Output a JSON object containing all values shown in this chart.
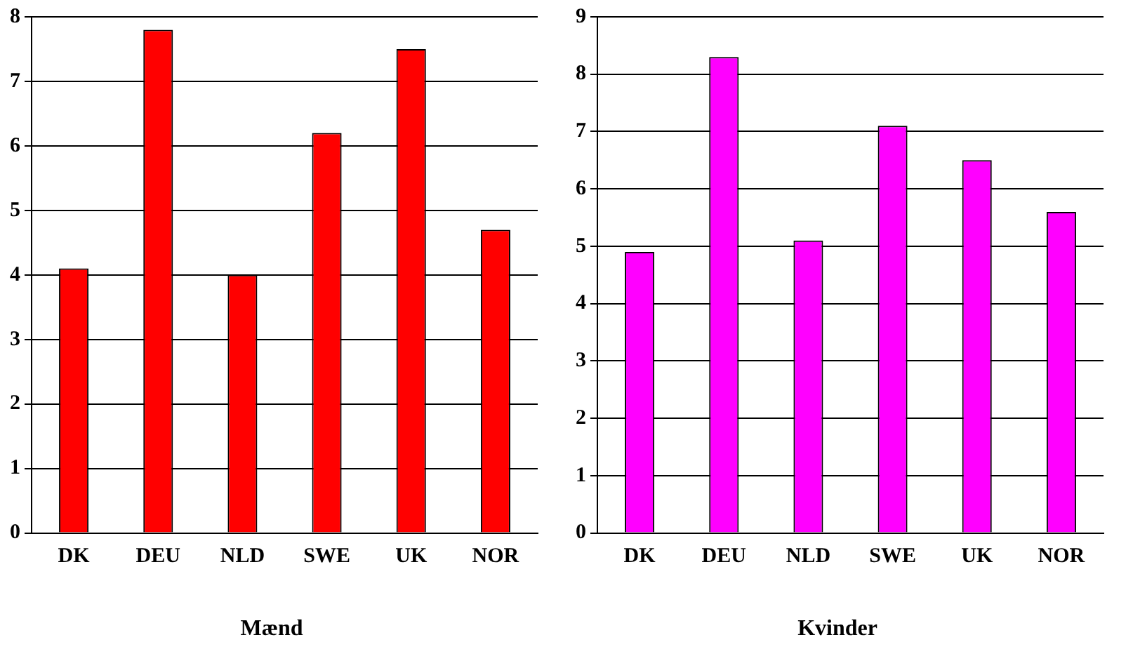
{
  "chart_data": [
    {
      "type": "bar",
      "title": "Mænd",
      "categories": [
        "DK",
        "DEU",
        "NLD",
        "SWE",
        "UK",
        "NOR"
      ],
      "values": [
        4.1,
        7.8,
        4.0,
        6.2,
        7.5,
        4.7
      ],
      "color": "#ff0000",
      "ylim": [
        0,
        8
      ],
      "yticks": [
        0,
        1,
        2,
        3,
        4,
        5,
        6,
        7,
        8
      ],
      "grid": "y"
    },
    {
      "type": "bar",
      "title": "Kvinder",
      "categories": [
        "DK",
        "DEU",
        "NLD",
        "SWE",
        "UK",
        "NOR"
      ],
      "values": [
        4.9,
        8.3,
        5.1,
        7.1,
        6.5,
        5.6
      ],
      "color": "#ff00ff",
      "ylim": [
        0,
        9
      ],
      "yticks": [
        0,
        1,
        2,
        3,
        4,
        5,
        6,
        7,
        8,
        9
      ],
      "grid": "y"
    }
  ]
}
